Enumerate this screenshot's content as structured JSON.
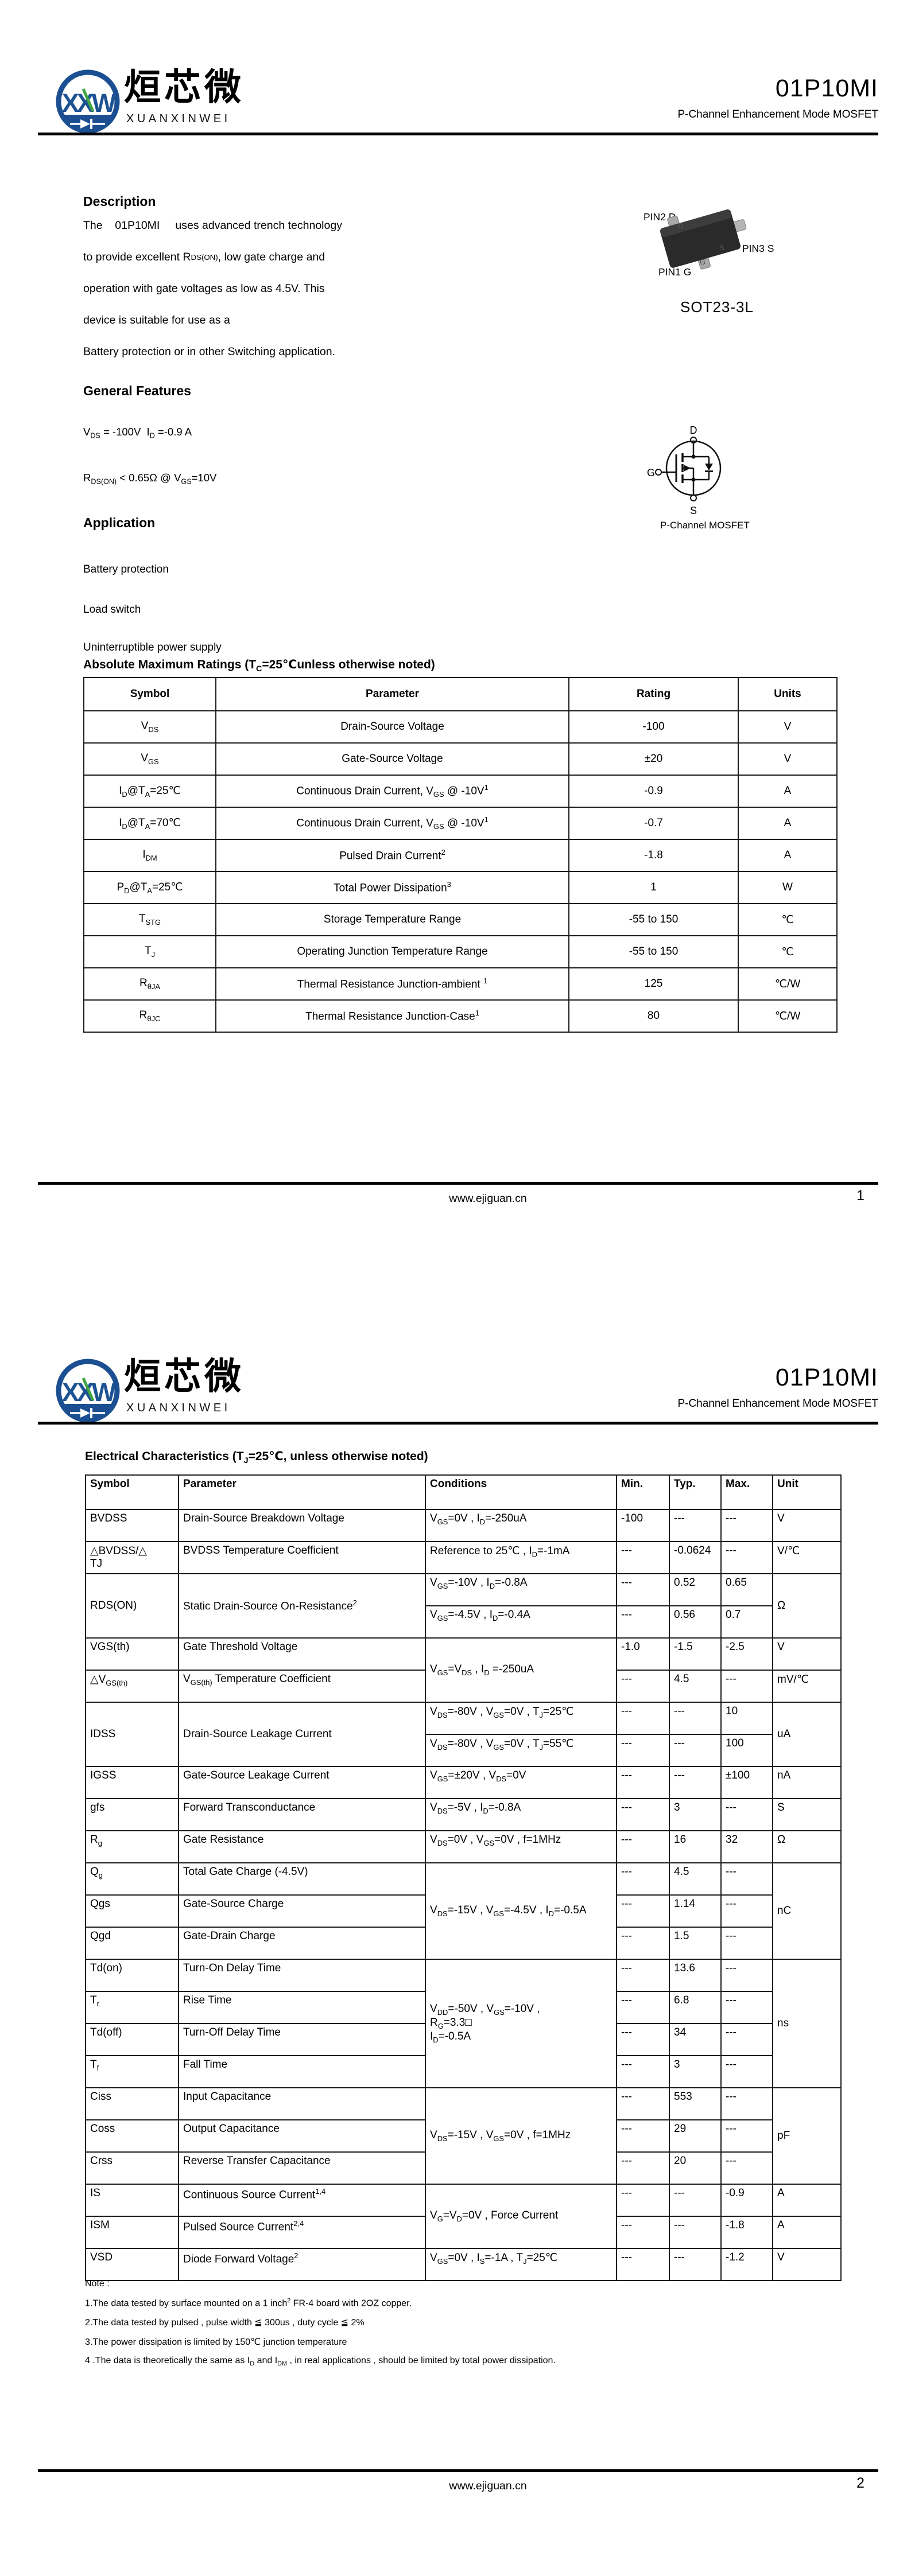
{
  "brand": {
    "logo_monogram": "XXW",
    "logo_text_cn": "烜芯微",
    "logo_text_en": "XUANXINWEI"
  },
  "header": {
    "part_number": "01P10MI",
    "subtitle": "P-Channel Enhancement Mode MOSFET"
  },
  "page1": {
    "description": {
      "heading": "Description",
      "lines": [
        "The    01P10MI     uses advanced trench technology",
        "to provide excellent R~DS(ON)~, low gate charge and",
        "operation with gate voltages as low as 4.5V. This",
        "device is suitable for use as a",
        "Battery protection or in other Switching application."
      ]
    },
    "package": {
      "pin2_label": "PIN2 D",
      "pin3_label": "PIN3 S",
      "pin1_label": "PIN1 G",
      "lead_d": "D",
      "lead_s": "S",
      "lead_g": "G",
      "name": "SOT23-3L"
    },
    "general_features": {
      "heading": "General Features",
      "lines": [
        "V~DS~ = -100V  I~D~ =-0.9 A",
        "R~DS(ON)~ < 0.65Ω @ V~GS~=10V"
      ]
    },
    "application": {
      "heading": "Application",
      "items": [
        "Battery protection",
        "Load switch",
        "Uninterruptible power supply"
      ]
    },
    "mosfet_symbol": {
      "terminal_d": "D",
      "terminal_g": "G",
      "terminal_s": "S",
      "caption": "P-Channel MOSFET"
    },
    "abs_max": {
      "title": "Absolute Maximum Ratings (T~C~=25℃unless otherwise noted)",
      "columns": [
        "Symbol",
        "Parameter",
        "Rating",
        "Units"
      ],
      "rows": [
        [
          "V~DS~",
          "Drain-Source Voltage",
          "-100",
          "V"
        ],
        [
          "V~GS~",
          "Gate-Source Voltage",
          "±20",
          "V"
        ],
        [
          "I~D~@T~A~=25℃",
          "Continuous Drain Current, V~GS~ @ -10V^1^",
          "-0.9",
          "A"
        ],
        [
          "I~D~@T~A~=70℃",
          "Continuous Drain Current, V~GS~ @ -10V^1^",
          "-0.7",
          "A"
        ],
        [
          "I~DM~",
          "Pulsed Drain Current^2^",
          "-1.8",
          "A"
        ],
        [
          "P~D~@T~A~=25℃",
          "Total Power Dissipation^3^",
          "1",
          "W"
        ],
        [
          "T~STG~",
          "Storage Temperature Range",
          "-55 to 150",
          "℃"
        ],
        [
          "T~J~",
          "Operating Junction Temperature Range",
          "-55 to 150",
          "℃"
        ],
        [
          "R~θJA~",
          "Thermal Resistance Junction-ambient ^1^",
          "125",
          "℃/W"
        ],
        [
          "R~θJC~",
          "Thermal Resistance Junction-Case^1^",
          "80",
          "℃/W"
        ]
      ]
    },
    "footer": {
      "url": "www.ejiguan.cn",
      "page": "1"
    }
  },
  "page2": {
    "elec": {
      "title": "Electrical Characteristics (T~J~=25℃, unless otherwise noted)",
      "columns": [
        "Symbol",
        "Parameter",
        "Conditions",
        "Min.",
        "Typ.",
        "Max.",
        "Unit"
      ],
      "rows": [
        [
          "BVDSS",
          "Drain-Source Breakdown Voltage",
          "V~GS~=0V , I~D~=-250uA",
          "-100",
          "---",
          "---",
          "V"
        ],
        [
          "△BVDSS/△\nTJ",
          "BVDSS Temperature Coefficient",
          "Reference to 25℃ , I~D~=-1mA",
          "---",
          "-0.0624",
          "---",
          "V/℃"
        ],
        [
          {
            "t": "RDS(ON)",
            "r": 2
          },
          {
            "t": "Static Drain-Source On-Resistance^2^",
            "r": 2
          },
          "V~GS~=-10V , I~D~=-0.8A",
          "---",
          "0.52",
          "0.65",
          {
            "t": "Ω",
            "r": 2
          }
        ],
        [
          "V~GS~=-4.5V , I~D~=-0.4A",
          "---",
          "0.56",
          "0.7"
        ],
        [
          "VGS(th)",
          "Gate Threshold Voltage",
          {
            "t": "V~GS~=V~DS~ , I~D~ =-250uA",
            "r": 2
          },
          "-1.0",
          "-1.5",
          "-2.5",
          "V"
        ],
        [
          "△V~GS(th)~",
          "V~GS(th)~ Temperature Coefficient",
          "---",
          "4.5",
          "---",
          "mV/℃"
        ],
        [
          {
            "t": "IDSS",
            "r": 2
          },
          {
            "t": "Drain-Source Leakage Current",
            "r": 2
          },
          "V~DS~=-80V , V~GS~=0V , T~J~=25℃",
          "---",
          "---",
          "10",
          {
            "t": "uA",
            "r": 2
          }
        ],
        [
          "V~DS~=-80V , V~GS~=0V , T~J~=55℃",
          "---",
          "---",
          "100"
        ],
        [
          "IGSS",
          "Gate-Source Leakage Current",
          "V~GS~=±20V , V~DS~=0V",
          "---",
          "---",
          "±100",
          "nA"
        ],
        [
          "gfs",
          "Forward Transconductance",
          "V~DS~=-5V , I~D~=-0.8A",
          "---",
          "3",
          "---",
          "S"
        ],
        [
          "R~g~",
          "Gate Resistance",
          "V~DS~=0V , V~GS~=0V , f=1MHz",
          "---",
          "16",
          "32",
          "Ω"
        ],
        [
          "Q~g~",
          "Total Gate Charge (-4.5V)",
          {
            "t": "V~DS~=-15V , V~GS~=-4.5V , I~D~=-0.5A",
            "r": 3
          },
          "---",
          "4.5",
          "---",
          {
            "t": "nC",
            "r": 3
          }
        ],
        [
          "Qgs",
          "Gate-Source Charge",
          "---",
          "1.14",
          "---"
        ],
        [
          "Qgd",
          "Gate-Drain Charge",
          "---",
          "1.5",
          "---"
        ],
        [
          "Td(on)",
          "Turn-On Delay Time",
          {
            "t": "V~DD~=-50V , V~GS~=-10V ,\nR~G~=3.3□\nI~D~=-0.5A",
            "r": 4
          },
          "---",
          "13.6",
          "---",
          {
            "t": "ns",
            "r": 4
          }
        ],
        [
          "T~r~",
          "Rise Time",
          "---",
          "6.8",
          "---"
        ],
        [
          "Td(off)",
          "Turn-Off Delay Time",
          "---",
          "34",
          "---"
        ],
        [
          "T~f~",
          "Fall Time",
          "---",
          "3",
          "---"
        ],
        [
          "Ciss",
          "Input Capacitance",
          {
            "t": "V~DS~=-15V , V~GS~=0V , f=1MHz",
            "r": 3
          },
          "---",
          "553",
          "---",
          {
            "t": "pF",
            "r": 3
          }
        ],
        [
          "Coss",
          "Output Capacitance",
          "---",
          "29",
          "---"
        ],
        [
          "Crss",
          "Reverse Transfer Capacitance",
          "---",
          "20",
          "---"
        ],
        [
          "IS",
          "Continuous Source Current^1,4^",
          {
            "t": "V~G~=V~D~=0V , Force Current",
            "r": 2
          },
          "---",
          "---",
          "-0.9",
          "A"
        ],
        [
          "ISM",
          "Pulsed Source Current^2,4^",
          "---",
          "---",
          "-1.8",
          "A"
        ],
        [
          "VSD",
          "Diode Forward Voltage^2^",
          "V~GS~=0V , I~S~=-1A , T~J~=25℃",
          "---",
          "---",
          "-1.2",
          "V"
        ]
      ]
    },
    "notes": {
      "heading": "Note :",
      "items": [
        "1.The data tested by surface mounted on a 1 inch^2^ FR-4 board with 2OZ copper.",
        "2.The data tested by pulsed , pulse width ≦ 300us , duty cycle ≦ 2%",
        "3.The power dissipation is limited by 150℃ junction temperature",
        "4 .The data is theoretically the same as I~D~ and I~DM~ , in real applications , should be limited by total power dissipation."
      ]
    },
    "footer": {
      "url": "www.ejiguan.cn",
      "page": "2"
    }
  }
}
